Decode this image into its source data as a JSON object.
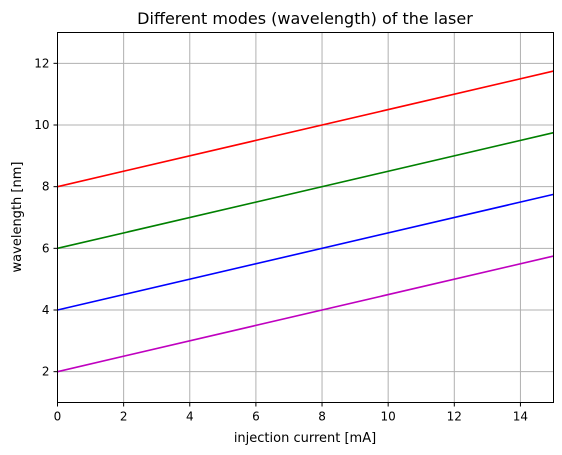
{
  "chart_data": {
    "type": "line",
    "title": "Different modes (wavelength) of the laser",
    "xlabel": "injection current [mA]",
    "ylabel": "wavelength [nm]",
    "xlim": [
      0,
      15
    ],
    "ylim": [
      1,
      13
    ],
    "xticks": [
      0,
      2,
      4,
      6,
      8,
      10,
      12,
      14
    ],
    "yticks": [
      2,
      4,
      6,
      8,
      10,
      12
    ],
    "grid": true,
    "series": [
      {
        "color": "#ff0000",
        "x": [
          0,
          15
        ],
        "y": [
          8,
          11.75
        ]
      },
      {
        "color": "#008000",
        "x": [
          0,
          15
        ],
        "y": [
          6,
          9.75
        ]
      },
      {
        "color": "#0000ff",
        "x": [
          0,
          15
        ],
        "y": [
          4,
          7.75
        ]
      },
      {
        "color": "#bf00bf",
        "x": [
          0,
          15
        ],
        "y": [
          2,
          5.75
        ]
      }
    ]
  }
}
